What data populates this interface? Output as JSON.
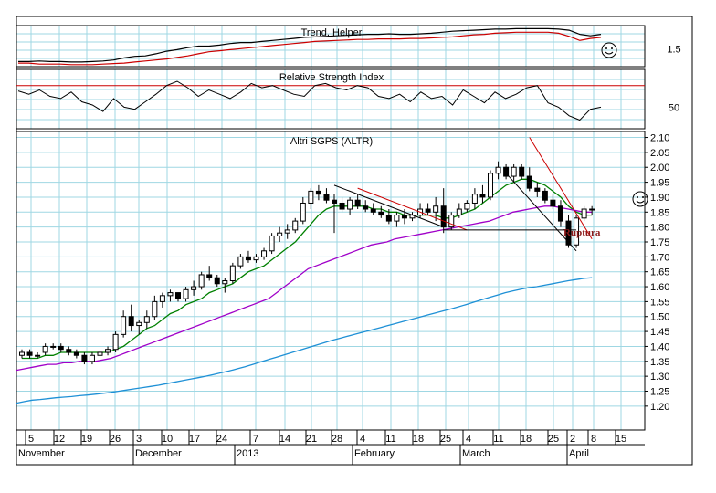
{
  "chart_data": [
    {
      "type": "line",
      "title": "Trend, Helper",
      "ytick_labels": [
        "1.5"
      ],
      "series": [
        {
          "name": "Trend",
          "color": "#000000",
          "values": [
            1.25,
            1.25,
            1.26,
            1.25,
            1.25,
            1.24,
            1.24,
            1.25,
            1.26,
            1.28,
            1.32,
            1.35,
            1.36,
            1.4,
            1.45,
            1.48,
            1.52,
            1.55,
            1.55,
            1.57,
            1.6,
            1.62,
            1.62,
            1.64,
            1.66,
            1.68,
            1.7,
            1.72,
            1.73,
            1.74,
            1.75,
            1.76,
            1.77,
            1.78,
            1.78,
            1.79,
            1.78,
            1.78,
            1.79,
            1.8,
            1.82,
            1.84,
            1.85,
            1.86,
            1.87,
            1.88,
            1.88,
            1.89,
            1.89,
            1.89,
            1.89,
            1.88,
            1.86,
            1.78,
            1.75,
            1.78
          ]
        },
        {
          "name": "Helper",
          "color": "#cc0000",
          "values": [
            1.22,
            1.22,
            1.2,
            1.2,
            1.2,
            1.19,
            1.19,
            1.19,
            1.2,
            1.21,
            1.22,
            1.24,
            1.26,
            1.28,
            1.3,
            1.33,
            1.36,
            1.4,
            1.44,
            1.46,
            1.48,
            1.5,
            1.52,
            1.54,
            1.56,
            1.58,
            1.6,
            1.62,
            1.64,
            1.65,
            1.66,
            1.67,
            1.68,
            1.68,
            1.69,
            1.69,
            1.69,
            1.7,
            1.7,
            1.71,
            1.72,
            1.73,
            1.75,
            1.77,
            1.78,
            1.8,
            1.81,
            1.82,
            1.82,
            1.82,
            1.82,
            1.8,
            1.74,
            1.66,
            1.7,
            1.72
          ]
        }
      ],
      "icon": "smiley-icon"
    },
    {
      "type": "line",
      "title": "Relative Strength Index",
      "ytick_labels": [
        "50"
      ],
      "reference_line": 70,
      "series": [
        {
          "name": "RSI",
          "color": "#000000",
          "values": [
            65,
            62,
            66,
            60,
            58,
            64,
            55,
            52,
            46,
            58,
            50,
            48,
            55,
            62,
            70,
            74,
            68,
            60,
            66,
            62,
            58,
            64,
            72,
            68,
            70,
            66,
            62,
            60,
            70,
            72,
            68,
            66,
            70,
            68,
            60,
            58,
            62,
            55,
            64,
            58,
            60,
            52,
            66,
            60,
            54,
            64,
            58,
            62,
            68,
            70,
            54,
            50,
            42,
            38,
            48,
            50
          ]
        }
      ],
      "icon": "smiley-icon"
    },
    {
      "type": "candlestick",
      "title": "Altri SGPS (ALTR)",
      "ylim": [
        1.12,
        2.12
      ],
      "yticks": [
        1.2,
        1.25,
        1.3,
        1.35,
        1.4,
        1.45,
        1.5,
        1.55,
        1.6,
        1.65,
        1.7,
        1.75,
        1.8,
        1.85,
        1.9,
        1.95,
        2.0,
        2.05,
        2.1
      ],
      "ytick_labels": [
        "1.20",
        "1.25",
        "1.30",
        "1.35",
        "1.40",
        "1.45",
        "1.50",
        "1.55",
        "1.60",
        "1.65",
        "1.70",
        "1.75",
        "1.80",
        "1.85",
        "1.90",
        "1.95",
        "2.00",
        "2.05",
        "2.10"
      ],
      "xtick_labels": [
        "5",
        "12",
        "19",
        "26",
        "3",
        "10",
        "17",
        "24",
        "7",
        "14",
        "21",
        "28",
        "4",
        "11",
        "18",
        "25",
        "4",
        "11",
        "18",
        "25",
        "2",
        "8",
        "15"
      ],
      "month_labels": [
        "November",
        "December",
        "2013",
        "February",
        "March",
        "April"
      ],
      "ohlc": [
        [
          1.37,
          1.39,
          1.36,
          1.38
        ],
        [
          1.38,
          1.39,
          1.36,
          1.37
        ],
        [
          1.37,
          1.38,
          1.36,
          1.37
        ],
        [
          1.38,
          1.41,
          1.37,
          1.4
        ],
        [
          1.4,
          1.41,
          1.39,
          1.4
        ],
        [
          1.4,
          1.41,
          1.38,
          1.39
        ],
        [
          1.39,
          1.4,
          1.37,
          1.38
        ],
        [
          1.38,
          1.39,
          1.36,
          1.37
        ],
        [
          1.37,
          1.38,
          1.34,
          1.35
        ],
        [
          1.35,
          1.38,
          1.34,
          1.37
        ],
        [
          1.37,
          1.39,
          1.36,
          1.38
        ],
        [
          1.38,
          1.4,
          1.37,
          1.39
        ],
        [
          1.39,
          1.45,
          1.38,
          1.44
        ],
        [
          1.44,
          1.52,
          1.43,
          1.5
        ],
        [
          1.5,
          1.54,
          1.45,
          1.47
        ],
        [
          1.47,
          1.49,
          1.44,
          1.48
        ],
        [
          1.48,
          1.52,
          1.46,
          1.5
        ],
        [
          1.5,
          1.57,
          1.49,
          1.55
        ],
        [
          1.55,
          1.58,
          1.53,
          1.57
        ],
        [
          1.57,
          1.59,
          1.55,
          1.58
        ],
        [
          1.58,
          1.58,
          1.55,
          1.56
        ],
        [
          1.56,
          1.6,
          1.55,
          1.59
        ],
        [
          1.59,
          1.62,
          1.57,
          1.6
        ],
        [
          1.6,
          1.65,
          1.59,
          1.64
        ],
        [
          1.64,
          1.67,
          1.62,
          1.63
        ],
        [
          1.63,
          1.64,
          1.6,
          1.61
        ],
        [
          1.61,
          1.63,
          1.58,
          1.62
        ],
        [
          1.62,
          1.68,
          1.61,
          1.67
        ],
        [
          1.67,
          1.71,
          1.66,
          1.7
        ],
        [
          1.7,
          1.72,
          1.68,
          1.69
        ],
        [
          1.69,
          1.71,
          1.68,
          1.7
        ],
        [
          1.7,
          1.73,
          1.69,
          1.72
        ],
        [
          1.72,
          1.78,
          1.71,
          1.77
        ],
        [
          1.77,
          1.8,
          1.75,
          1.78
        ],
        [
          1.78,
          1.81,
          1.76,
          1.79
        ],
        [
          1.79,
          1.83,
          1.78,
          1.82
        ],
        [
          1.82,
          1.9,
          1.81,
          1.88
        ],
        [
          1.88,
          1.93,
          1.86,
          1.92
        ],
        [
          1.92,
          1.94,
          1.89,
          1.91
        ],
        [
          1.91,
          1.93,
          1.88,
          1.89
        ],
        [
          1.89,
          1.91,
          1.78,
          1.88
        ],
        [
          1.88,
          1.9,
          1.85,
          1.86
        ],
        [
          1.86,
          1.9,
          1.84,
          1.89
        ],
        [
          1.89,
          1.91,
          1.86,
          1.87
        ],
        [
          1.87,
          1.89,
          1.85,
          1.86
        ],
        [
          1.86,
          1.88,
          1.84,
          1.85
        ],
        [
          1.85,
          1.87,
          1.83,
          1.84
        ],
        [
          1.84,
          1.86,
          1.81,
          1.82
        ],
        [
          1.82,
          1.85,
          1.8,
          1.84
        ],
        [
          1.84,
          1.86,
          1.81,
          1.83
        ],
        [
          1.83,
          1.85,
          1.82,
          1.84
        ],
        [
          1.84,
          1.88,
          1.83,
          1.86
        ],
        [
          1.86,
          1.88,
          1.84,
          1.85
        ],
        [
          1.85,
          1.9,
          1.82,
          1.87
        ],
        [
          1.87,
          1.93,
          1.78,
          1.8
        ],
        [
          1.8,
          1.85,
          1.79,
          1.84
        ],
        [
          1.84,
          1.88,
          1.83,
          1.86
        ],
        [
          1.86,
          1.89,
          1.85,
          1.88
        ],
        [
          1.88,
          1.93,
          1.86,
          1.91
        ],
        [
          1.91,
          1.94,
          1.88,
          1.9
        ],
        [
          1.9,
          1.99,
          1.89,
          1.98
        ],
        [
          1.98,
          2.02,
          1.96,
          2.0
        ],
        [
          2.0,
          2.01,
          1.96,
          1.97
        ],
        [
          1.97,
          2.01,
          1.95,
          2.0
        ],
        [
          2.0,
          2.01,
          1.96,
          1.97
        ],
        [
          1.97,
          2.0,
          1.92,
          1.93
        ],
        [
          1.93,
          1.95,
          1.9,
          1.92
        ],
        [
          1.92,
          1.93,
          1.88,
          1.89
        ],
        [
          1.89,
          1.91,
          1.86,
          1.87
        ],
        [
          1.87,
          1.89,
          1.8,
          1.82
        ],
        [
          1.82,
          1.84,
          1.73,
          1.74
        ],
        [
          1.74,
          1.84,
          1.73,
          1.83
        ],
        [
          1.83,
          1.87,
          1.82,
          1.86
        ],
        [
          1.86,
          1.87,
          1.84,
          1.86
        ]
      ],
      "overlays": [
        {
          "name": "ma-short",
          "color": "#008000",
          "values": [
            1.36,
            1.36,
            1.36,
            1.37,
            1.37,
            1.38,
            1.38,
            1.38,
            1.38,
            1.38,
            1.38,
            1.38,
            1.39,
            1.4,
            1.42,
            1.44,
            1.46,
            1.47,
            1.49,
            1.51,
            1.52,
            1.54,
            1.55,
            1.56,
            1.58,
            1.59,
            1.6,
            1.61,
            1.63,
            1.65,
            1.66,
            1.67,
            1.69,
            1.71,
            1.73,
            1.75,
            1.78,
            1.81,
            1.84,
            1.86,
            1.87,
            1.87,
            1.87,
            1.87,
            1.87,
            1.86,
            1.86,
            1.85,
            1.85,
            1.84,
            1.84,
            1.84,
            1.84,
            1.84,
            1.83,
            1.83,
            1.84,
            1.85,
            1.86,
            1.88,
            1.9,
            1.92,
            1.94,
            1.95,
            1.96,
            1.96,
            1.95,
            1.94,
            1.92,
            1.9,
            1.87,
            1.85,
            1.84,
            1.84
          ]
        },
        {
          "name": "ma-medium",
          "color": "#a000c8",
          "values": [
            1.32,
            1.325,
            1.33,
            1.335,
            1.34,
            1.34,
            1.345,
            1.345,
            1.35,
            1.35,
            1.35,
            1.355,
            1.36,
            1.37,
            1.38,
            1.39,
            1.4,
            1.41,
            1.42,
            1.43,
            1.44,
            1.45,
            1.46,
            1.47,
            1.48,
            1.49,
            1.5,
            1.51,
            1.52,
            1.53,
            1.54,
            1.55,
            1.56,
            1.58,
            1.6,
            1.62,
            1.64,
            1.66,
            1.67,
            1.68,
            1.69,
            1.7,
            1.71,
            1.72,
            1.73,
            1.74,
            1.745,
            1.75,
            1.76,
            1.765,
            1.77,
            1.775,
            1.78,
            1.785,
            1.79,
            1.795,
            1.8,
            1.805,
            1.81,
            1.815,
            1.82,
            1.83,
            1.84,
            1.85,
            1.855,
            1.86,
            1.865,
            1.87,
            1.87,
            1.865,
            1.86,
            1.855,
            1.85,
            1.85
          ]
        },
        {
          "name": "ma-long",
          "color": "#1e90d6",
          "values": [
            1.21,
            1.215,
            1.22,
            1.222,
            1.225,
            1.228,
            1.23,
            1.232,
            1.235,
            1.237,
            1.24,
            1.243,
            1.246,
            1.25,
            1.254,
            1.258,
            1.262,
            1.266,
            1.27,
            1.275,
            1.28,
            1.285,
            1.29,
            1.295,
            1.3,
            1.306,
            1.312,
            1.318,
            1.325,
            1.332,
            1.34,
            1.348,
            1.356,
            1.364,
            1.372,
            1.38,
            1.388,
            1.396,
            1.404,
            1.412,
            1.42,
            1.427,
            1.434,
            1.441,
            1.448,
            1.455,
            1.462,
            1.469,
            1.476,
            1.483,
            1.49,
            1.497,
            1.504,
            1.511,
            1.518,
            1.525,
            1.532,
            1.54,
            1.548,
            1.556,
            1.564,
            1.572,
            1.58,
            1.586,
            1.592,
            1.597,
            1.6,
            1.605,
            1.61,
            1.615,
            1.62,
            1.624,
            1.628,
            1.63
          ]
        }
      ],
      "annotations": [
        {
          "type": "trendline",
          "color": "#000000",
          "from": [
            40,
            1.94
          ],
          "to": [
            54,
            1.8
          ]
        },
        {
          "type": "trendline",
          "color": "#cc0000",
          "from": [
            43,
            1.93
          ],
          "to": [
            57,
            1.79
          ]
        },
        {
          "type": "hline",
          "color": "#000000",
          "from": [
            54,
            1.79
          ],
          "to": [
            71,
            1.79
          ]
        },
        {
          "type": "trendline",
          "color": "#cc0000",
          "from": [
            65,
            2.1
          ],
          "to": [
            73,
            1.76
          ]
        },
        {
          "type": "trendline",
          "color": "#000000",
          "from": [
            62,
            1.98
          ],
          "to": [
            71,
            1.72
          ]
        },
        {
          "type": "text",
          "text": "Ruptura",
          "color": "#8b1a1a",
          "at": [
            71,
            1.78
          ]
        }
      ],
      "icon": "smiley-icon"
    }
  ]
}
